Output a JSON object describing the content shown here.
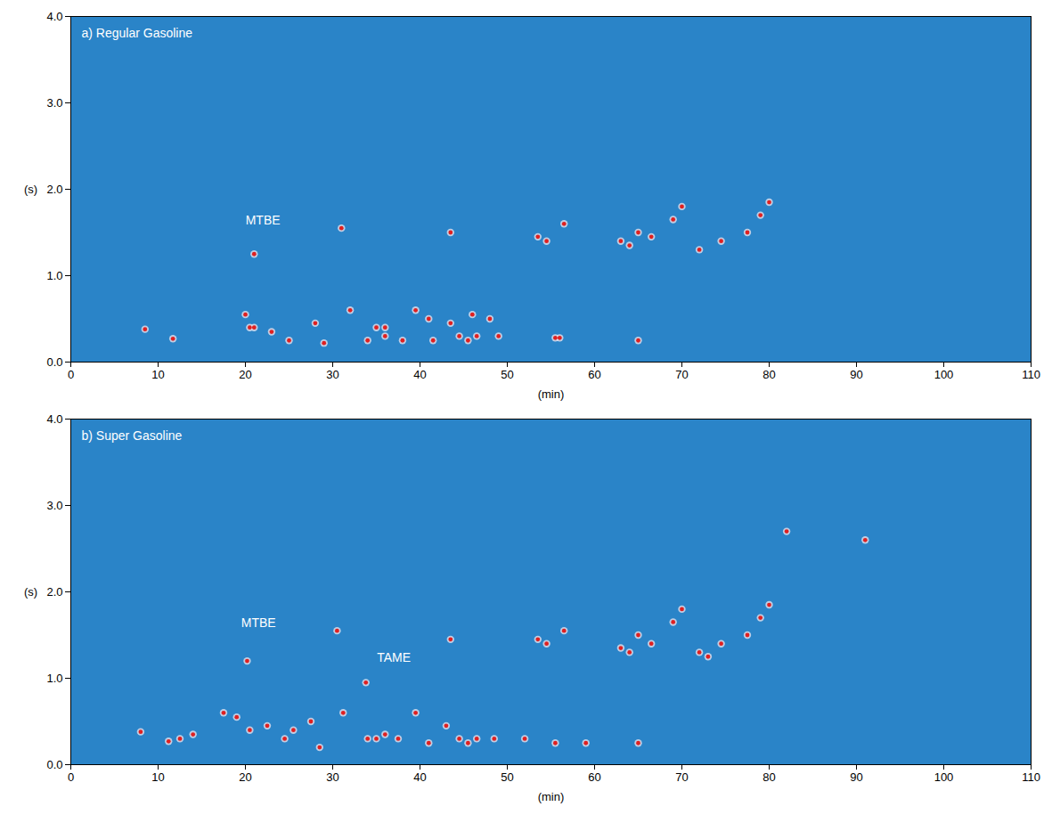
{
  "chart_data": [
    {
      "type": "scatter",
      "title": "a) Regular Gasoline",
      "xlabel": "(min)",
      "ylabel": "(s)",
      "color": "#e02020",
      "marker": "circle",
      "xlim": [
        0,
        110
      ],
      "xticks": [
        0,
        10,
        20,
        30,
        40,
        50,
        60,
        70,
        80,
        90,
        100,
        110
      ],
      "ylim": [
        0,
        4
      ],
      "yticks": [
        {
          "value": 0,
          "label": "0.0"
        },
        {
          "value": 1,
          "label": "1.0"
        },
        {
          "value": 2,
          "label": "2.0"
        },
        {
          "value": 3,
          "label": "3.0"
        },
        {
          "value": 4,
          "label": "4.0"
        }
      ],
      "x": [
        8.5,
        11.7,
        20,
        20.5,
        21,
        21,
        23,
        25,
        28,
        29,
        31,
        32,
        34,
        35,
        36,
        36,
        38,
        39.5,
        41,
        41.5,
        43.5,
        43.5,
        44.5,
        45.5,
        46,
        46.5,
        48,
        49,
        53.5,
        54.5,
        55.5,
        56.5,
        56,
        63,
        64,
        65,
        65,
        66.5,
        69,
        70,
        72,
        74.5,
        77.5,
        79,
        80
      ],
      "values": [
        0.38,
        0.27,
        0.55,
        0.4,
        1.25,
        0.4,
        0.35,
        0.25,
        0.45,
        0.22,
        1.55,
        0.6,
        0.25,
        0.4,
        0.4,
        0.3,
        0.25,
        0.6,
        0.5,
        0.25,
        1.5,
        0.45,
        0.3,
        0.25,
        0.55,
        0.3,
        0.5,
        0.3,
        1.45,
        1.4,
        0.28,
        1.6,
        0.28,
        1.4,
        1.35,
        0.25,
        1.5,
        1.45,
        1.65,
        1.8,
        1.3,
        1.4,
        1.5,
        1.7,
        1.85
      ],
      "annotations": [
        {
          "text": "MTBE",
          "x": 22,
          "y": 1.6
        }
      ]
    },
    {
      "type": "scatter",
      "title": "b) Super Gasoline",
      "xlabel": "(min)",
      "ylabel": "(s)",
      "color": "#e02020",
      "marker": "circle",
      "xlim": [
        0,
        110
      ],
      "xticks": [
        0,
        10,
        20,
        30,
        40,
        50,
        60,
        70,
        80,
        90,
        100,
        110
      ],
      "ylim": [
        0,
        4
      ],
      "yticks": [
        {
          "value": 0,
          "label": "0.0"
        },
        {
          "value": 1,
          "label": "1.0"
        },
        {
          "value": 2,
          "label": "2.0"
        },
        {
          "value": 3,
          "label": "3.0"
        },
        {
          "value": 4,
          "label": "4.0"
        }
      ],
      "x": [
        8,
        11.2,
        12.5,
        14,
        17.5,
        19,
        20.2,
        20.5,
        22.5,
        24.5,
        25.5,
        27.5,
        28.5,
        30.5,
        31.2,
        33.8,
        34,
        35,
        36,
        37.5,
        39.5,
        41,
        43,
        43.5,
        44.5,
        45.5,
        46.5,
        48.5,
        52,
        53.5,
        54.5,
        55.5,
        56.5,
        59,
        63,
        64,
        65,
        65,
        66.5,
        69,
        70,
        72,
        73,
        74.5,
        77.5,
        79,
        80,
        82,
        91
      ],
      "values": [
        0.38,
        0.27,
        0.3,
        0.35,
        0.6,
        0.55,
        1.2,
        0.4,
        0.45,
        0.3,
        0.4,
        0.5,
        0.2,
        1.55,
        0.6,
        0.95,
        0.3,
        0.3,
        0.35,
        0.3,
        0.6,
        0.25,
        0.45,
        1.45,
        0.3,
        0.25,
        0.3,
        0.3,
        0.3,
        1.45,
        1.4,
        0.25,
        1.55,
        0.25,
        1.35,
        1.3,
        1.5,
        0.25,
        1.4,
        1.65,
        1.8,
        1.3,
        1.25,
        1.4,
        1.5,
        1.7,
        1.85,
        2.7,
        2.6
      ],
      "annotations": [
        {
          "text": "MTBE",
          "x": 21.5,
          "y": 1.6
        },
        {
          "text": "TAME",
          "x": 37,
          "y": 1.2
        }
      ]
    }
  ]
}
